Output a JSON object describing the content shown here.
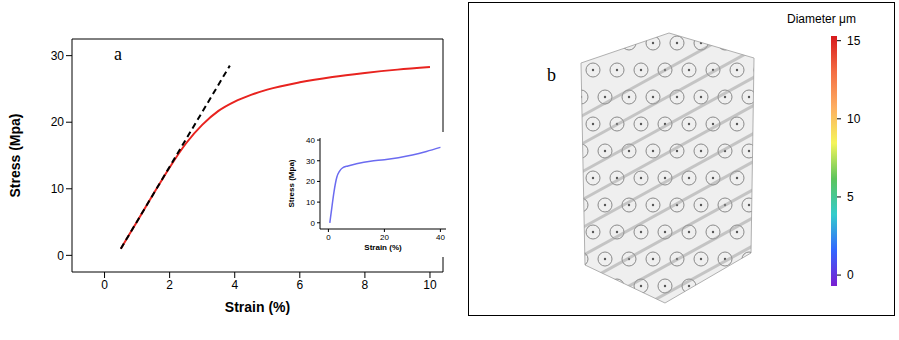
{
  "chart_data": [
    {
      "type": "line",
      "panel": "a",
      "x_label": "Strain (%)",
      "y_label": "Stress (Mpa)",
      "xlim": [
        -1,
        10.4
      ],
      "xticks": [
        0,
        2,
        4,
        6,
        8,
        10
      ],
      "ylim": [
        -2.5,
        32.5
      ],
      "yticks": [
        0,
        10,
        20,
        30
      ],
      "series": [
        {
          "color": "#e8231f",
          "line_style": "solid",
          "x": [
            0.5,
            1,
            1.5,
            2,
            2.5,
            3,
            3.5,
            4,
            4.5,
            5,
            6,
            7,
            8,
            9,
            10
          ],
          "values": [
            1,
            5.1,
            9.2,
            13.2,
            16.8,
            19.6,
            21.7,
            23.1,
            24.1,
            24.9,
            26,
            26.8,
            27.4,
            27.9,
            28.3
          ]
        },
        {
          "color": "#000000",
          "line_style": "dashed",
          "x": [
            0.5,
            3.85
          ],
          "values": [
            1,
            28.5
          ]
        }
      ],
      "inset": {
        "type": "line",
        "x_label": "Strain (%)",
        "y_label": "Stress (Mpa)",
        "xlim": [
          -3,
          42
        ],
        "xticks": [
          0,
          20,
          40
        ],
        "ylim": [
          -3,
          41
        ],
        "yticks": [
          0,
          10,
          20,
          30,
          40
        ],
        "series": [
          {
            "color": "#6b6bf0",
            "line_style": "solid",
            "x": [
              0.5,
              1,
              2,
              3,
              4,
              5,
              7,
              10,
              15,
              20,
              25,
              30,
              35,
              40
            ],
            "values": [
              0,
              5,
              15,
              22,
              25,
              26.5,
              27.5,
              28.5,
              29.8,
              30.5,
              31.5,
              32.8,
              34.5,
              36.5
            ]
          }
        ]
      }
    },
    {
      "type": "colorbar",
      "panel": "b",
      "title": "Diameter μm",
      "ylim": [
        -0.7,
        15.3
      ],
      "yticks": [
        0,
        5,
        10,
        15
      ],
      "colors": [
        "#d7191c",
        "#f46d43",
        "#fdae61",
        "#f5f55a",
        "#5cc45c",
        "#33cccc",
        "#3366ff",
        "#7a1fd1"
      ]
    }
  ]
}
